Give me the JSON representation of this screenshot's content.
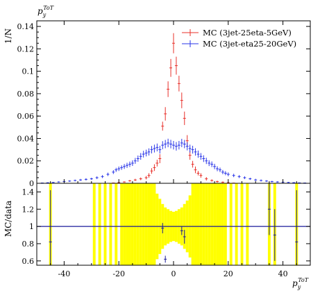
{
  "chart_data": [
    {
      "type": "scatter",
      "title": "",
      "ylabel_top": "p_y^{ToT}",
      "ylabel": "1/N",
      "xlim": [
        -50,
        50
      ],
      "ylim": [
        0,
        0.145
      ],
      "yticks": [
        0,
        0.02,
        0.04,
        0.06,
        0.08,
        0.1,
        0.12,
        0.14
      ],
      "ytick_labels": [
        "0",
        "0.02",
        "0.04",
        "0.06",
        "0.08",
        "0.1",
        "0.12",
        "0.14"
      ],
      "legend_position": "top-right",
      "series": [
        {
          "name": "MC (3jet-25eta-5GeV)",
          "color": "#e8302a",
          "x": [
            -22,
            -20,
            -18,
            -16,
            -14,
            -12,
            -10,
            -9,
            -8,
            -7,
            -6,
            -5,
            -4,
            -3,
            -2,
            -1,
            0,
            1,
            2,
            3,
            4,
            5,
            6,
            7,
            8,
            9,
            10,
            12,
            14,
            16,
            18,
            20,
            22
          ],
          "y": [
            0.0003,
            0.0006,
            0.0012,
            0.0022,
            0.003,
            0.004,
            0.005,
            0.007,
            0.011,
            0.014,
            0.018,
            0.022,
            0.051,
            0.062,
            0.084,
            0.103,
            0.125,
            0.105,
            0.089,
            0.074,
            0.058,
            0.038,
            0.025,
            0.017,
            0.012,
            0.009,
            0.007,
            0.004,
            0.0025,
            0.0015,
            0.001,
            0.0005,
            0.0002
          ],
          "err": [
            0.0002,
            0.0003,
            0.0005,
            0.0008,
            0.001,
            0.0012,
            0.0015,
            0.002,
            0.0025,
            0.003,
            0.003,
            0.004,
            0.004,
            0.006,
            0.007,
            0.008,
            0.009,
            0.008,
            0.007,
            0.007,
            0.006,
            0.005,
            0.004,
            0.003,
            0.003,
            0.002,
            0.002,
            0.0015,
            0.001,
            0.0008,
            0.0006,
            0.0004,
            0.0002
          ]
        },
        {
          "name": "MC (3jet-eta25-20GeV)",
          "color": "#2a36e8",
          "x": [
            -48,
            -46,
            -44,
            -42,
            -40,
            -38,
            -36,
            -34,
            -32,
            -30,
            -28,
            -26,
            -24,
            -22,
            -21,
            -20,
            -19,
            -18,
            -17,
            -16,
            -15,
            -14,
            -13,
            -12,
            -11,
            -10,
            -9,
            -8,
            -7,
            -6,
            -5,
            -4,
            -3,
            -2,
            -1,
            0,
            1,
            2,
            3,
            4,
            5,
            6,
            7,
            8,
            9,
            10,
            11,
            12,
            13,
            14,
            15,
            16,
            17,
            18,
            19,
            20,
            22,
            24,
            26,
            28,
            30,
            32,
            34,
            36,
            38,
            40,
            42,
            44,
            46,
            48
          ],
          "y": [
            0.0003,
            0.0005,
            0.0008,
            0.0012,
            0.0016,
            0.002,
            0.0025,
            0.003,
            0.0035,
            0.004,
            0.005,
            0.006,
            0.008,
            0.01,
            0.012,
            0.013,
            0.014,
            0.015,
            0.016,
            0.017,
            0.018,
            0.02,
            0.022,
            0.024,
            0.026,
            0.027,
            0.028,
            0.03,
            0.031,
            0.032,
            0.03,
            0.034,
            0.035,
            0.036,
            0.035,
            0.034,
            0.033,
            0.034,
            0.036,
            0.035,
            0.033,
            0.031,
            0.03,
            0.028,
            0.026,
            0.024,
            0.022,
            0.02,
            0.018,
            0.017,
            0.015,
            0.013,
            0.012,
            0.01,
            0.009,
            0.008,
            0.007,
            0.006,
            0.005,
            0.004,
            0.003,
            0.0025,
            0.002,
            0.0015,
            0.0012,
            0.001,
            0.0008,
            0.0006,
            0.0004,
            0.0003
          ],
          "err": [
            0.0002,
            0.0003,
            0.0004,
            0.0005,
            0.0006,
            0.0007,
            0.0008,
            0.0009,
            0.001,
            0.001,
            0.0012,
            0.0013,
            0.0015,
            0.0017,
            0.0018,
            0.002,
            0.002,
            0.0022,
            0.0023,
            0.0024,
            0.0025,
            0.0026,
            0.0028,
            0.003,
            0.003,
            0.003,
            0.0032,
            0.0033,
            0.0035,
            0.0035,
            0.0035,
            0.0036,
            0.0037,
            0.0038,
            0.0038,
            0.0038,
            0.0038,
            0.0038,
            0.0037,
            0.0037,
            0.0036,
            0.0035,
            0.0035,
            0.0033,
            0.0032,
            0.003,
            0.003,
            0.0028,
            0.0026,
            0.0025,
            0.0024,
            0.0022,
            0.002,
            0.0019,
            0.0018,
            0.0017,
            0.0015,
            0.0013,
            0.0012,
            0.001,
            0.001,
            0.0009,
            0.0008,
            0.0007,
            0.0006,
            0.0005,
            0.0004,
            0.0003,
            0.0002,
            0.0002
          ]
        }
      ]
    },
    {
      "type": "scatter",
      "title": "",
      "ylabel": "MC/data",
      "xlabel": "p_y^{ToT}",
      "xlim": [
        -50,
        50
      ],
      "ylim": [
        0.55,
        1.5
      ],
      "yticks": [
        0.6,
        0.8,
        1,
        1.2,
        1.4
      ],
      "ytick_labels": [
        "0.6",
        "0.8",
        "1",
        "1.2",
        "1.4"
      ],
      "xticks": [
        -40,
        -20,
        0,
        20,
        40
      ],
      "xtick_labels": [
        "-40",
        "-20",
        "0",
        "20",
        "40"
      ],
      "reference_line": 1,
      "band": {
        "color": "#ffff00",
        "x": [
          -45,
          -29,
          -27,
          -25,
          -23,
          -21,
          -19,
          -18,
          -17,
          -16,
          -15,
          -14,
          -13,
          -12,
          -11,
          -10,
          -9,
          -8,
          -7,
          -6,
          -5,
          -4,
          -3,
          -2,
          -1,
          0,
          1,
          2,
          3,
          4,
          5,
          6,
          7,
          8,
          9,
          10,
          11,
          12,
          13,
          14,
          15,
          16,
          17,
          18,
          19,
          21,
          23,
          25,
          27,
          35,
          37,
          45
        ],
        "halfwidth": [
          1.0,
          1.0,
          1.0,
          1.0,
          1.0,
          1.0,
          1.0,
          1.0,
          1.0,
          1.0,
          1.0,
          1.0,
          1.0,
          1.0,
          1.0,
          1.0,
          1.0,
          1.0,
          1.0,
          0.38,
          0.32,
          0.26,
          0.22,
          0.2,
          0.18,
          0.17,
          0.18,
          0.2,
          0.22,
          0.26,
          0.3,
          0.36,
          1.0,
          1.0,
          1.0,
          1.0,
          1.0,
          1.0,
          1.0,
          1.0,
          1.0,
          1.0,
          1.0,
          1.0,
          1.0,
          1.0,
          1.0,
          1.0,
          1.0,
          1.0,
          1.0,
          1.0
        ]
      },
      "ratio_points": [
        {
          "x": -45,
          "y": 0.82,
          "err": 0.6
        },
        {
          "x": -4,
          "y": 0.98,
          "err": 0.06
        },
        {
          "x": -3,
          "y": 0.62,
          "err": 0.04
        },
        {
          "x": 3,
          "y": 0.95,
          "err": 0.05
        },
        {
          "x": 4,
          "y": 0.88,
          "err": 0.08
        },
        {
          "x": 35,
          "y": 1.2,
          "err": 0.3
        },
        {
          "x": 37,
          "y": 0.9,
          "err": 0.3
        },
        {
          "x": 45,
          "y": 0.82,
          "err": 0.6
        }
      ]
    }
  ]
}
